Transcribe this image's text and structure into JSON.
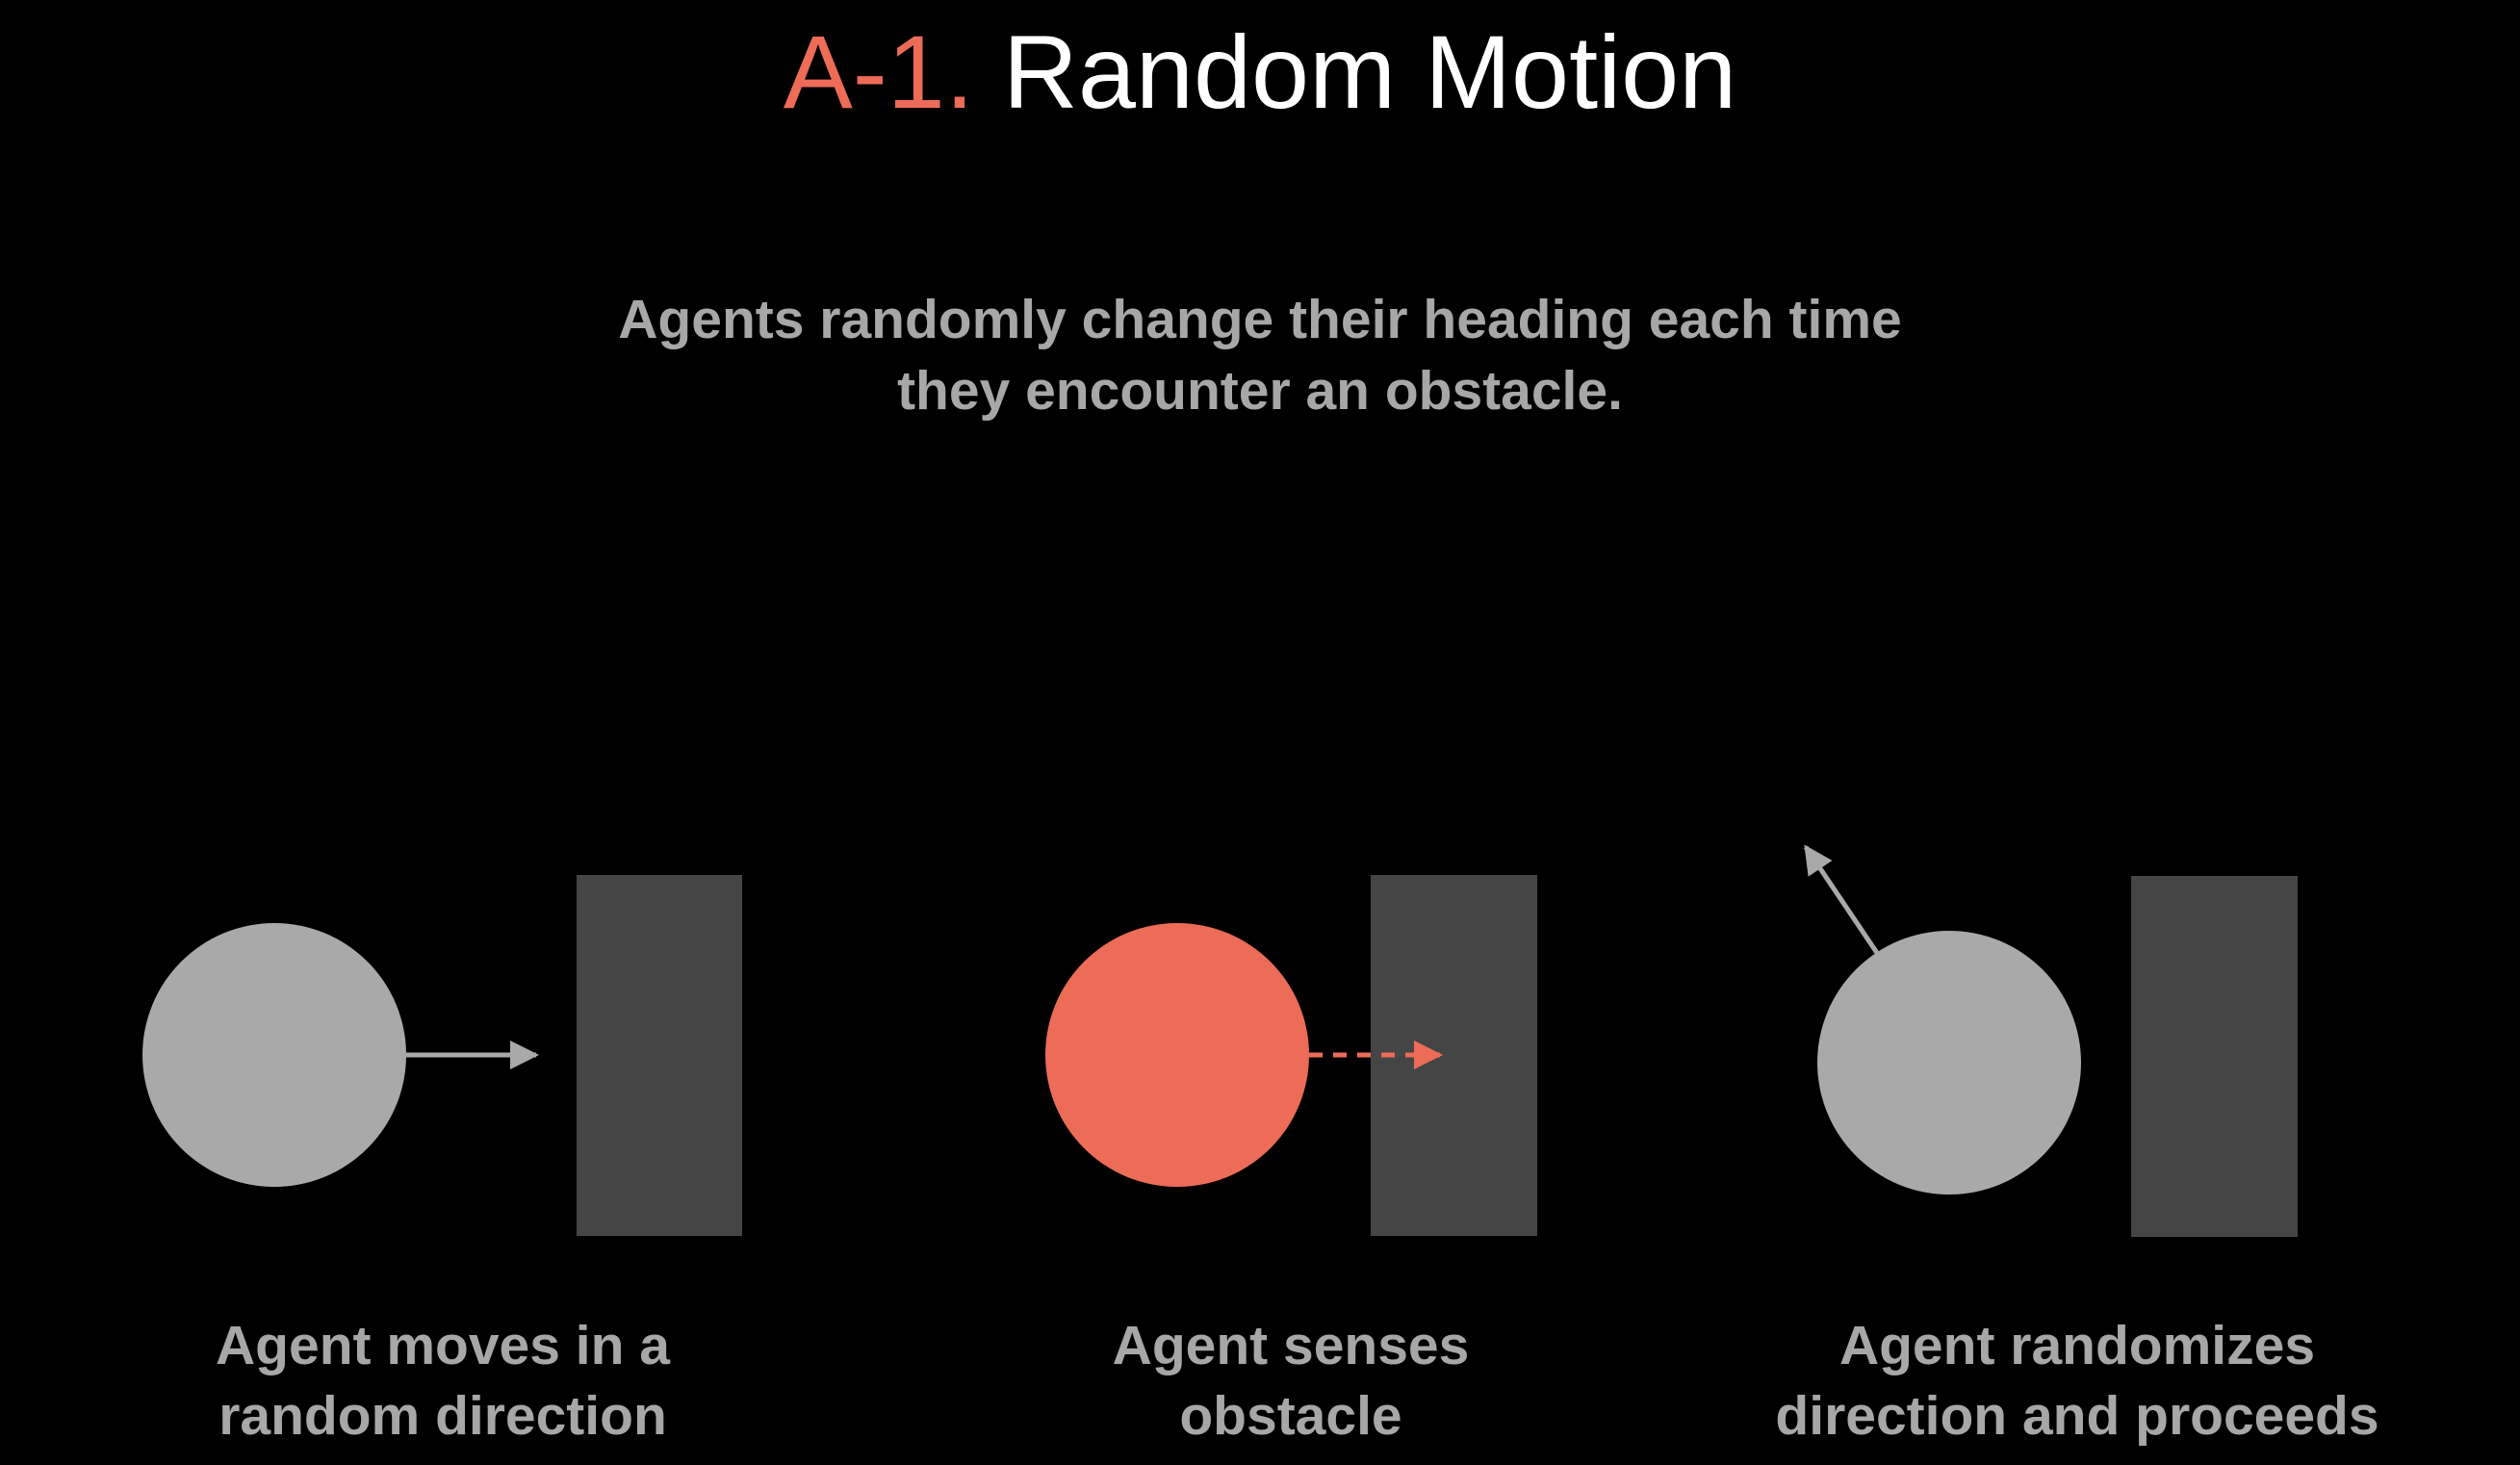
{
  "title": {
    "prefix": "A-1.",
    "main": "Random Motion"
  },
  "subtitle": {
    "line1": "Agents randomly change their heading each time",
    "line2": "they encounter an obstacle."
  },
  "colors": {
    "background": "#000000",
    "accent": "#ec6c58",
    "agent": "#a9a9a9",
    "obstacle": "#454545",
    "text": "#a7a7a7"
  },
  "steps": [
    {
      "line1": "Agent moves in a",
      "line2": "random direction",
      "agent_state": "moving",
      "arrow": "solid"
    },
    {
      "line1": "Agent senses",
      "line2": "obstacle",
      "agent_state": "sensing",
      "arrow": "dashed"
    },
    {
      "line1": "Agent randomizes",
      "line2": "direction and proceeds",
      "agent_state": "redirected",
      "arrow": "solid"
    }
  ]
}
